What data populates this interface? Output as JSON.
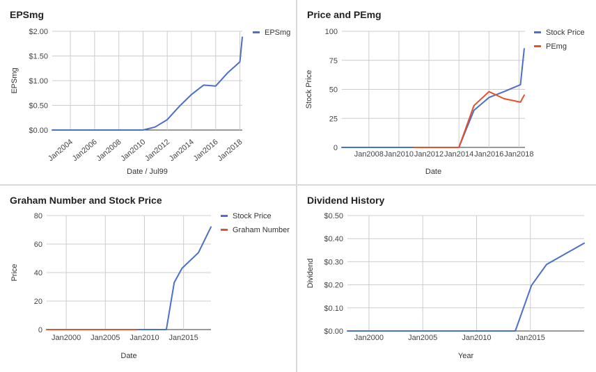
{
  "chart_data": [
    {
      "type": "line",
      "title": "EPSmg",
      "xlabel": "Date / Jul99",
      "ylabel": "EPSmg",
      "x_tick_labels": [
        "Jan2004",
        "Jan2006",
        "Jan2008",
        "Jan2010",
        "Jan2012",
        "Jan2014",
        "Jan2016",
        "Jan2018"
      ],
      "x_tick_values": [
        2004,
        2006,
        2008,
        2010,
        2012,
        2014,
        2016,
        2018
      ],
      "xlim": [
        2002.5,
        2018.2
      ],
      "y_tick_labels": [
        "$0.00",
        "$0.50",
        "$1.00",
        "$1.50",
        "$2.00"
      ],
      "y_tick_values": [
        0,
        0.5,
        1,
        1.5,
        2
      ],
      "ylim": [
        0,
        2
      ],
      "x_label_rotation": -40,
      "grid": true,
      "legend": "top-right",
      "series": [
        {
          "name": "EPSmg",
          "color": "#4a70c9",
          "x": [
            2002.5,
            2010,
            2011,
            2012,
            2013,
            2014,
            2015,
            2016,
            2017,
            2018,
            2018.2
          ],
          "y": [
            0,
            0,
            0.06,
            0.21,
            0.48,
            0.72,
            0.91,
            0.89,
            1.16,
            1.38,
            1.88
          ]
        }
      ]
    },
    {
      "type": "line",
      "title": "Price and PEmg",
      "xlabel": "Date",
      "ylabel": "Stock Price",
      "x_tick_labels": [
        "Jan2008",
        "Jan2010",
        "Jan2012",
        "Jan2014",
        "Jan2016",
        "Jan2018"
      ],
      "x_tick_values": [
        2008,
        2010,
        2012,
        2014,
        2016,
        2018
      ],
      "xlim": [
        2006.2,
        2018.4
      ],
      "y_tick_labels": [
        "0",
        "25",
        "50",
        "75",
        "100"
      ],
      "y_tick_values": [
        0,
        25,
        50,
        75,
        100
      ],
      "ylim": [
        0,
        100
      ],
      "x_label_rotation": 0,
      "grid": true,
      "legend": "top-right",
      "series": [
        {
          "name": "Stock Price",
          "color": "#4a70c9",
          "x": [
            2006.2,
            2014,
            2015,
            2016,
            2017,
            2018.1,
            2018.35
          ],
          "y": [
            0,
            0,
            32,
            43,
            48,
            54,
            85
          ]
        },
        {
          "name": "PEmg",
          "color": "#e3522c",
          "x": [
            2011,
            2014,
            2015,
            2016,
            2017,
            2018.1,
            2018.35
          ],
          "y": [
            0,
            0,
            36,
            48,
            42,
            39,
            45
          ]
        }
      ]
    },
    {
      "type": "line",
      "title": "Graham Number and Stock Price",
      "xlabel": "Date",
      "ylabel": "Price",
      "x_tick_labels": [
        "Jan2000",
        "Jan2005",
        "Jan2010",
        "Jan2015"
      ],
      "x_tick_values": [
        2000,
        2005,
        2010,
        2015
      ],
      "xlim": [
        1997.5,
        2018.5
      ],
      "y_tick_labels": [
        "0",
        "20",
        "40",
        "60",
        "80"
      ],
      "y_tick_values": [
        0,
        20,
        40,
        60,
        80
      ],
      "ylim": [
        0,
        80
      ],
      "x_label_rotation": 0,
      "grid": true,
      "legend": "top-right",
      "series": [
        {
          "name": "Stock Price",
          "color": "#4a70c9",
          "x": [
            1997.5,
            2012.8,
            2013.8,
            2014.8,
            2016.9,
            2018.5
          ],
          "y": [
            0,
            0,
            33,
            43,
            54,
            72
          ]
        },
        {
          "name": "Graham Number",
          "color": "#e3522c",
          "x": [
            1997.5,
            2009
          ],
          "y": [
            0,
            0
          ]
        }
      ]
    },
    {
      "type": "line",
      "title": "Dividend History",
      "xlabel": "Year",
      "ylabel": "Dividend",
      "x_tick_labels": [
        "Jan2000",
        "Jan2005",
        "Jan2010",
        "Jan2015"
      ],
      "x_tick_values": [
        2000,
        2005,
        2010,
        2015
      ],
      "xlim": [
        1998,
        2020
      ],
      "y_tick_labels": [
        "$0.00",
        "$0.10",
        "$0.20",
        "$0.30",
        "$0.40",
        "$0.50"
      ],
      "y_tick_values": [
        0,
        0.1,
        0.2,
        0.3,
        0.4,
        0.5
      ],
      "ylim": [
        0,
        0.5
      ],
      "x_label_rotation": 0,
      "grid": true,
      "legend": "none",
      "series": [
        {
          "name": "",
          "color": "#4a70c9",
          "x": [
            1998,
            2013.6,
            2015.1,
            2016.5,
            2020
          ],
          "y": [
            0,
            0,
            0.197,
            0.288,
            0.38
          ]
        }
      ]
    }
  ]
}
